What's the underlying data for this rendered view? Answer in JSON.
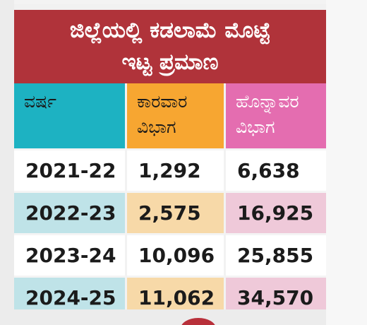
{
  "title": {
    "line1": "ಜಿಲ್ಲೆಯಲ್ಲಿ ಕಡಲಾಮೆ ಮೊಟ್ಟೆ",
    "line2": "ಇಟ್ಟ ಪ್ರಮಾಣ"
  },
  "table": {
    "headers": [
      {
        "line1": "ವರ್ಷ",
        "line2": ""
      },
      {
        "line1": "ಕಾರವಾರ",
        "line2": "ವಿಭಾಗ"
      },
      {
        "line1": "ಹೊನ್ನಾವರ",
        "line2": "ವಿಭಾಗ"
      }
    ],
    "rows": [
      [
        "2021-22",
        "1,292",
        "6,638"
      ],
      [
        "2022-23",
        "2,575",
        "16,925"
      ],
      [
        "2023-24",
        "10,096",
        "25,855"
      ],
      [
        "2024-25",
        "11,062",
        "34,570"
      ]
    ]
  },
  "colors": {
    "title_bg": "#b0333a",
    "year_header": "#1db2c2",
    "karwar_header": "#f7a631",
    "honnavar_header": "#e46db0",
    "year_tint": "#bfe3e8",
    "karwar_tint": "#f7d9a8",
    "honnavar_tint": "#efc9d9"
  }
}
